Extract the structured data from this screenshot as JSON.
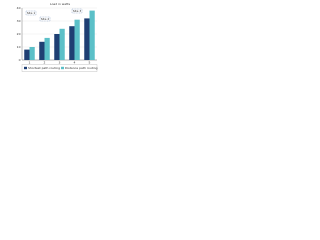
{
  "chart_data": {
    "type": "bar",
    "title": "Load in watts",
    "categories": [
      "1",
      "2",
      "3",
      "4",
      "5"
    ],
    "series": [
      {
        "name": "Shortest path routing",
        "color": "#1f3f73",
        "values": [
          8,
          14,
          20,
          26,
          32
        ]
      },
      {
        "name": "Distance path routing",
        "color": "#5bc0c8",
        "values": [
          10,
          17,
          24,
          31,
          38
        ]
      }
    ],
    "annotations": [
      "Site 1",
      "Site 2",
      "Site 3"
    ],
    "ylim": [
      0,
      40
    ],
    "yticks": [
      0,
      10,
      20,
      30,
      40
    ],
    "grid": true,
    "legend": "bottom"
  }
}
